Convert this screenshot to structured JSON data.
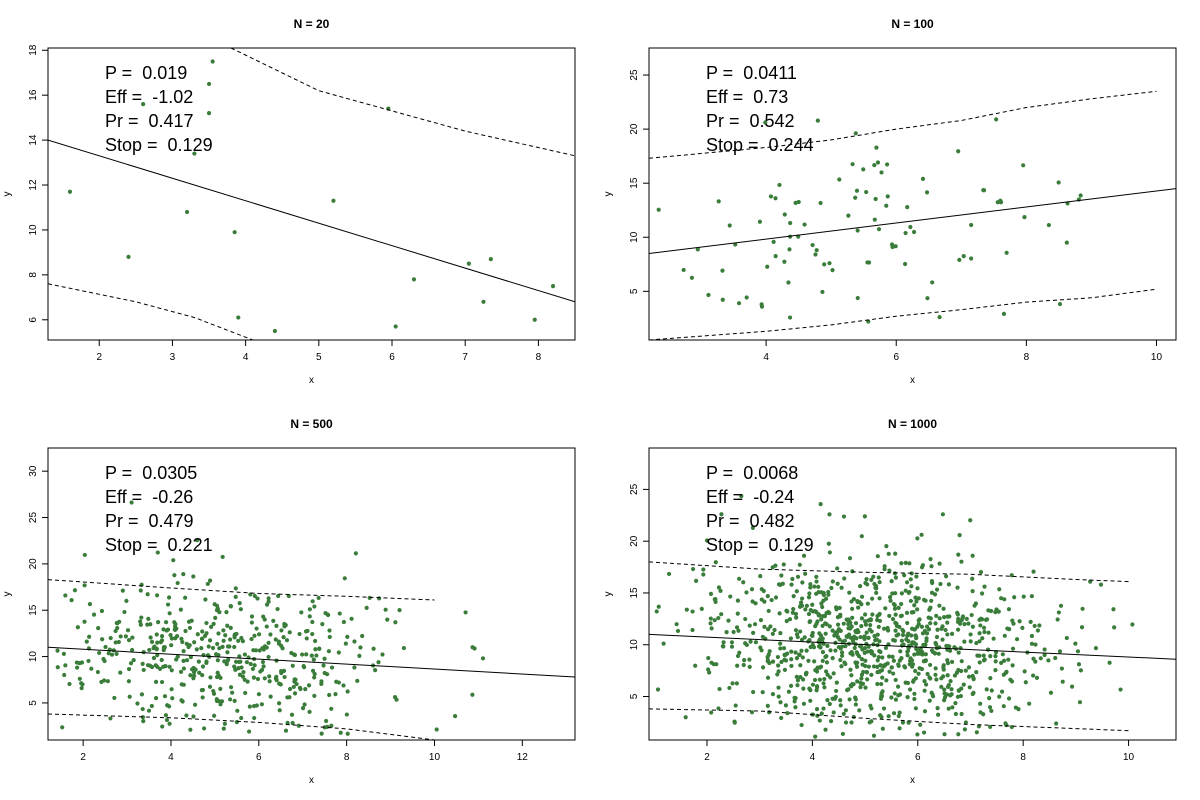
{
  "colors": {
    "points": "#3a7d3a",
    "lines": "#000000",
    "frame": "#000000",
    "background": "#ffffff"
  },
  "chart_data": [
    {
      "type": "scatter",
      "title": "N = 20",
      "xlabel": "x",
      "ylabel": "y",
      "xlim": [
        1.3,
        8.5
      ],
      "ylim": [
        5.1,
        18.1
      ],
      "xticks": [
        2,
        3,
        4,
        5,
        6,
        7,
        8
      ],
      "yticks": [
        6,
        8,
        10,
        12,
        14,
        16,
        18
      ],
      "grid": false,
      "stats": [
        {
          "label": "P =",
          "value": "0.019"
        },
        {
          "label": "Eff =",
          "value": "-1.02"
        },
        {
          "label": "Pr =",
          "value": "0.417"
        },
        {
          "label": "Stop =",
          "value": "0.129"
        }
      ],
      "points": [
        [
          1.6,
          11.7
        ],
        [
          2.4,
          8.8
        ],
        [
          2.6,
          15.6
        ],
        [
          3.2,
          10.8
        ],
        [
          3.3,
          13.4
        ],
        [
          3.5,
          15.2
        ],
        [
          3.5,
          16.5
        ],
        [
          3.55,
          17.5
        ],
        [
          3.85,
          9.9
        ],
        [
          3.9,
          6.1
        ],
        [
          4.4,
          5.5
        ],
        [
          5.2,
          11.3
        ],
        [
          5.95,
          15.4
        ],
        [
          6.05,
          5.7
        ],
        [
          6.3,
          7.8
        ],
        [
          7.05,
          8.5
        ],
        [
          7.25,
          6.8
        ],
        [
          7.35,
          8.7
        ],
        [
          7.95,
          6.0
        ],
        [
          8.2,
          7.5
        ]
      ],
      "fit_line": [
        [
          1.3,
          14.0
        ],
        [
          8.5,
          6.8
        ]
      ],
      "lower_band": [
        [
          1.3,
          7.6
        ],
        [
          2.5,
          6.8
        ],
        [
          3.3,
          6.1
        ],
        [
          4.1,
          5.1
        ]
      ],
      "upper_band": [
        [
          3.8,
          18.1
        ],
        [
          5.0,
          16.2
        ],
        [
          7.0,
          14.4
        ],
        [
          8.5,
          13.3
        ]
      ]
    },
    {
      "type": "scatter",
      "title": "N = 100",
      "xlabel": "x",
      "ylabel": "y",
      "xlim": [
        2.2,
        10.3
      ],
      "ylim": [
        0.5,
        27.5
      ],
      "xticks": [
        4,
        6,
        8,
        10
      ],
      "yticks": [
        5,
        10,
        15,
        20,
        25
      ],
      "grid": false,
      "stats": [
        {
          "label": "P =",
          "value": "0.0411"
        },
        {
          "label": "Eff =",
          "value": "0.73"
        },
        {
          "label": "Pr =",
          "value": "0.542"
        },
        {
          "label": "Stop =",
          "value": "0.244"
        }
      ],
      "fit_line": [
        [
          2.2,
          8.5
        ],
        [
          10.3,
          14.5
        ]
      ],
      "lower_band": [
        [
          2.2,
          0.5
        ],
        [
          4.0,
          1.3
        ],
        [
          5.0,
          1.9
        ],
        [
          6.0,
          2.7
        ],
        [
          7.0,
          3.3
        ],
        [
          8.0,
          4.0
        ],
        [
          9.0,
          4.4
        ],
        [
          10.0,
          5.2
        ]
      ],
      "upper_band": [
        [
          2.2,
          17.3
        ],
        [
          4.0,
          18.3
        ],
        [
          5.0,
          19.0
        ],
        [
          6.0,
          20.0
        ],
        [
          7.0,
          20.8
        ],
        [
          8.0,
          22.0
        ],
        [
          9.0,
          22.8
        ],
        [
          10.0,
          23.5
        ]
      ]
    },
    {
      "type": "scatter",
      "title": "N = 500",
      "xlabel": "x",
      "ylabel": "y",
      "xlim": [
        1.2,
        13.2
      ],
      "ylim": [
        1.0,
        32.5
      ],
      "xticks": [
        2,
        4,
        6,
        8,
        10,
        12
      ],
      "yticks": [
        5,
        10,
        15,
        20,
        25,
        30
      ],
      "grid": false,
      "stats": [
        {
          "label": "P =",
          "value": "0.0305"
        },
        {
          "label": "Eff =",
          "value": "-0.26"
        },
        {
          "label": "Pr =",
          "value": "0.479"
        },
        {
          "label": "Stop =",
          "value": "0.221"
        }
      ],
      "fit_line": [
        [
          1.2,
          11.0
        ],
        [
          13.2,
          7.8
        ]
      ],
      "lower_band": [
        [
          1.2,
          3.8
        ],
        [
          4.0,
          3.4
        ],
        [
          6.0,
          2.9
        ],
        [
          8.0,
          2.2
        ],
        [
          10.0,
          1.0
        ]
      ],
      "upper_band": [
        [
          1.2,
          18.3
        ],
        [
          4.0,
          17.4
        ],
        [
          6.0,
          16.8
        ],
        [
          8.0,
          16.5
        ],
        [
          10.0,
          16.1
        ]
      ]
    },
    {
      "type": "scatter",
      "title": "N = 1000",
      "xlabel": "x",
      "ylabel": "y",
      "xlim": [
        0.9,
        10.9
      ],
      "ylim": [
        0.8,
        29.0
      ],
      "xticks": [
        2,
        4,
        6,
        8,
        10
      ],
      "yticks": [
        5,
        10,
        15,
        20,
        25
      ],
      "grid": false,
      "stats": [
        {
          "label": "P =",
          "value": "0.0068"
        },
        {
          "label": "Eff =",
          "value": "-0.24"
        },
        {
          "label": "Pr =",
          "value": "0.482"
        },
        {
          "label": "Stop =",
          "value": "0.129"
        }
      ],
      "fit_line": [
        [
          0.9,
          11.0
        ],
        [
          10.9,
          8.6
        ]
      ],
      "lower_band": [
        [
          0.9,
          3.8
        ],
        [
          3.0,
          3.6
        ],
        [
          5.0,
          2.9
        ],
        [
          7.0,
          2.3
        ],
        [
          9.0,
          1.9
        ],
        [
          10.0,
          1.7
        ]
      ],
      "upper_band": [
        [
          0.9,
          18.0
        ],
        [
          3.0,
          17.3
        ],
        [
          5.0,
          17.0
        ],
        [
          7.0,
          16.8
        ],
        [
          9.0,
          16.3
        ],
        [
          10.0,
          16.1
        ]
      ]
    }
  ]
}
